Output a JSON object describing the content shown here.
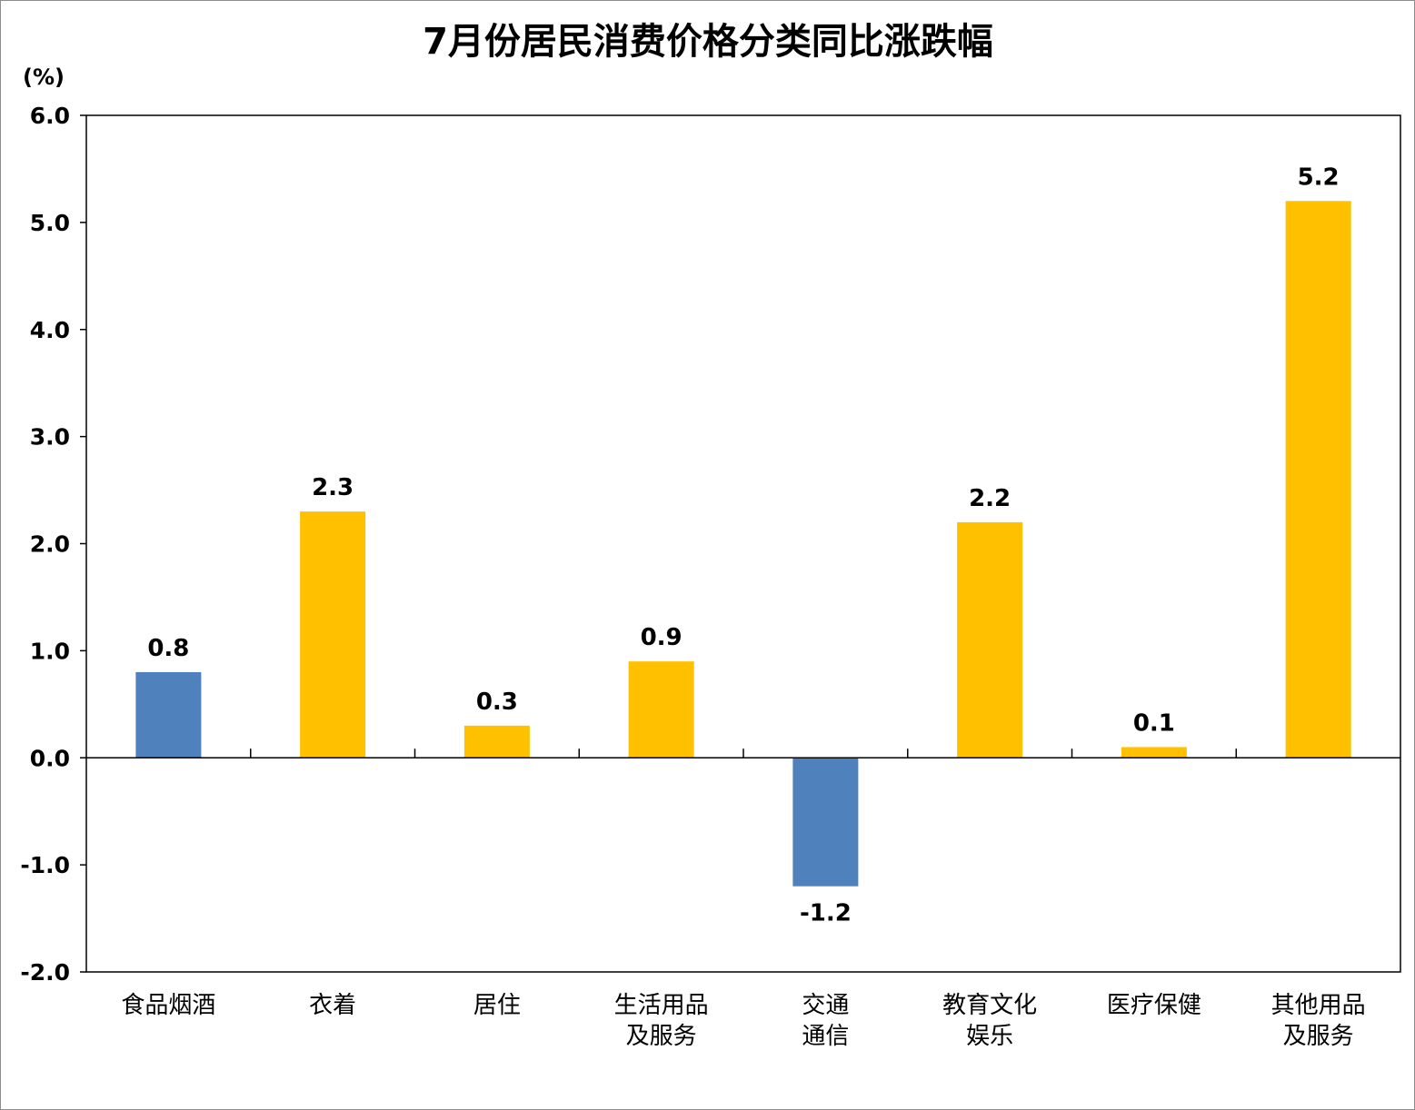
{
  "chart_data": {
    "type": "bar",
    "title": "7月份居民消费价格分类同比涨跌幅",
    "unit_label": "(%)",
    "categories": [
      [
        "食品烟酒"
      ],
      [
        "衣着"
      ],
      [
        "居住"
      ],
      [
        "生活用品",
        "及服务"
      ],
      [
        "交通",
        "通信"
      ],
      [
        "教育文化",
        "娱乐"
      ],
      [
        "医疗保健"
      ],
      [
        "其他用品",
        "及服务"
      ]
    ],
    "values": [
      0.8,
      2.3,
      0.3,
      0.9,
      -1.2,
      2.2,
      0.1,
      5.2
    ],
    "data_labels": [
      "0.8",
      "2.3",
      "0.3",
      "0.9",
      "-1.2",
      "2.2",
      "0.1",
      "5.2"
    ],
    "bar_colors": [
      "#4f81bd",
      "#ffc000",
      "#ffc000",
      "#ffc000",
      "#4f81bd",
      "#ffc000",
      "#ffc000",
      "#ffc000"
    ],
    "ylim": [
      -2.0,
      6.0
    ],
    "yticks": [
      6.0,
      5.0,
      4.0,
      3.0,
      2.0,
      1.0,
      0.0,
      -1.0,
      -2.0
    ],
    "ytick_labels": [
      "6.0",
      "5.0",
      "4.0",
      "3.0",
      "2.0",
      "1.0",
      "0.0",
      "-1.0",
      "-2.0"
    ],
    "grid": false,
    "legend": "none"
  }
}
